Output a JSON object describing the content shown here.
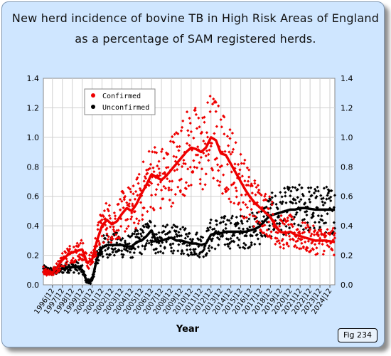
{
  "title_line1": "New herd incidence of bovine TB in High Risk Areas of England",
  "title_line2": "as a percentage of SAM registered herds.",
  "fig_label": "Fig 234",
  "colors": {
    "confirmed": "#ee0000",
    "unconfirmed": "#000000",
    "background": "#cfe6ff",
    "plot_bg": "#ffffff",
    "grid": "#d0d0d0"
  },
  "chart_data": {
    "type": "scatter",
    "xlabel": "Year",
    "ylabel": "",
    "ylim": [
      0,
      1.4
    ],
    "yticks": [
      "0.0",
      "0.2",
      "0.4",
      "0.6",
      "0.8",
      "1.0",
      "1.2",
      "1.4"
    ],
    "xticks": [
      "1996-12",
      "1997-12",
      "1998-12",
      "1999-12",
      "2000-12",
      "2001-12",
      "2002-12",
      "2003-12",
      "2004-12",
      "2005-12",
      "2006-12",
      "2007-12",
      "2008-12",
      "2009-12",
      "2010-12",
      "2011-12",
      "2012-12",
      "2013-12",
      "2014-12",
      "2015-12",
      "2016-12",
      "2017-12",
      "2018-12",
      "2019-12",
      "2020-12",
      "2021-12",
      "2022-12",
      "2023-12",
      "2024-12"
    ],
    "xtick_labels": [
      "1996|12",
      "1997|12",
      "1998|12",
      "1999|12",
      "2000|12",
      "2001|12",
      "2002|12",
      "2003|12",
      "2004|12",
      "2005|12",
      "2006|12",
      "2007|12",
      "2008|12",
      "2009|12",
      "2010|12",
      "2011|12",
      "2012|12",
      "2013|12",
      "2014|12",
      "2015|12",
      "2016|12",
      "2017|12",
      "2018|12",
      "2019|12",
      "2020|12",
      "2021|12",
      "2022|12",
      "2023|12",
      "2024|12"
    ],
    "x_range": [
      "1996-01",
      "2025-06"
    ],
    "legend_position": "top-left",
    "grid": true,
    "series": [
      {
        "name": "Confirmed",
        "style": "scatter-with-trend",
        "trend": [
          [
            "1996-01",
            0.1
          ],
          [
            "1996-12",
            0.08
          ],
          [
            "1997-06",
            0.12
          ],
          [
            "1997-12",
            0.17
          ],
          [
            "1998-06",
            0.2
          ],
          [
            "1998-12",
            0.22
          ],
          [
            "1999-06",
            0.23
          ],
          [
            "1999-12",
            0.24
          ],
          [
            "2000-06",
            0.15
          ],
          [
            "2000-12",
            0.17
          ],
          [
            "2001-06",
            0.3
          ],
          [
            "2001-12",
            0.4
          ],
          [
            "2002-06",
            0.44
          ],
          [
            "2002-12",
            0.41
          ],
          [
            "2003-06",
            0.43
          ],
          [
            "2003-12",
            0.48
          ],
          [
            "2004-06",
            0.52
          ],
          [
            "2004-12",
            0.5
          ],
          [
            "2005-06",
            0.55
          ],
          [
            "2005-12",
            0.62
          ],
          [
            "2006-06",
            0.68
          ],
          [
            "2006-12",
            0.75
          ],
          [
            "2007-06",
            0.73
          ],
          [
            "2007-12",
            0.71
          ],
          [
            "2008-06",
            0.74
          ],
          [
            "2008-12",
            0.78
          ],
          [
            "2009-06",
            0.82
          ],
          [
            "2009-12",
            0.86
          ],
          [
            "2010-06",
            0.9
          ],
          [
            "2010-12",
            0.93
          ],
          [
            "2011-06",
            0.92
          ],
          [
            "2011-12",
            0.9
          ],
          [
            "2012-06",
            0.93
          ],
          [
            "2012-12",
            1.0
          ],
          [
            "2013-06",
            0.98
          ],
          [
            "2013-12",
            0.89
          ],
          [
            "2014-06",
            0.88
          ],
          [
            "2014-12",
            0.82
          ],
          [
            "2015-06",
            0.76
          ],
          [
            "2015-12",
            0.7
          ],
          [
            "2016-06",
            0.64
          ],
          [
            "2016-12",
            0.59
          ],
          [
            "2017-06",
            0.55
          ],
          [
            "2017-12",
            0.52
          ],
          [
            "2018-06",
            0.49
          ],
          [
            "2018-12",
            0.46
          ],
          [
            "2019-06",
            0.4
          ],
          [
            "2019-12",
            0.36
          ],
          [
            "2020-06",
            0.35
          ],
          [
            "2020-12",
            0.36
          ],
          [
            "2021-06",
            0.34
          ],
          [
            "2021-12",
            0.33
          ],
          [
            "2022-06",
            0.32
          ],
          [
            "2022-12",
            0.31
          ],
          [
            "2023-06",
            0.3
          ],
          [
            "2024-06",
            0.3
          ],
          [
            "2025-06",
            0.29
          ]
        ]
      },
      {
        "name": "Unconfirmed",
        "style": "scatter-with-trend",
        "trend": [
          [
            "1996-01",
            0.1
          ],
          [
            "1996-12",
            0.09
          ],
          [
            "1997-06",
            0.1
          ],
          [
            "1997-12",
            0.11
          ],
          [
            "1998-06",
            0.12
          ],
          [
            "1998-12",
            0.12
          ],
          [
            "1999-06",
            0.12
          ],
          [
            "1999-12",
            0.1
          ],
          [
            "2000-06",
            0.02
          ],
          [
            "2000-12",
            0.03
          ],
          [
            "2001-06",
            0.18
          ],
          [
            "2001-12",
            0.25
          ],
          [
            "2002-06",
            0.27
          ],
          [
            "2002-12",
            0.27
          ],
          [
            "2003-06",
            0.27
          ],
          [
            "2003-12",
            0.27
          ],
          [
            "2004-06",
            0.26
          ],
          [
            "2004-12",
            0.26
          ],
          [
            "2005-06",
            0.29
          ],
          [
            "2005-12",
            0.3
          ],
          [
            "2006-06",
            0.33
          ],
          [
            "2006-12",
            0.37
          ],
          [
            "2007-06",
            0.29
          ],
          [
            "2007-12",
            0.3
          ],
          [
            "2008-06",
            0.31
          ],
          [
            "2008-12",
            0.32
          ],
          [
            "2009-06",
            0.3
          ],
          [
            "2009-12",
            0.3
          ],
          [
            "2010-06",
            0.29
          ],
          [
            "2010-12",
            0.28
          ],
          [
            "2011-06",
            0.28
          ],
          [
            "2011-12",
            0.27
          ],
          [
            "2012-06",
            0.28
          ],
          [
            "2012-12",
            0.34
          ],
          [
            "2013-06",
            0.35
          ],
          [
            "2013-12",
            0.35
          ],
          [
            "2014-06",
            0.36
          ],
          [
            "2014-12",
            0.36
          ],
          [
            "2015-06",
            0.36
          ],
          [
            "2015-12",
            0.36
          ],
          [
            "2016-06",
            0.36
          ],
          [
            "2016-12",
            0.37
          ],
          [
            "2017-06",
            0.38
          ],
          [
            "2017-12",
            0.4
          ],
          [
            "2018-06",
            0.44
          ],
          [
            "2018-12",
            0.47
          ],
          [
            "2019-06",
            0.48
          ],
          [
            "2019-12",
            0.49
          ],
          [
            "2020-06",
            0.5
          ],
          [
            "2020-12",
            0.51
          ],
          [
            "2021-06",
            0.51
          ],
          [
            "2021-12",
            0.52
          ],
          [
            "2022-06",
            0.52
          ],
          [
            "2023-06",
            0.51
          ],
          [
            "2024-06",
            0.51
          ],
          [
            "2025-06",
            0.51
          ]
        ]
      }
    ]
  }
}
